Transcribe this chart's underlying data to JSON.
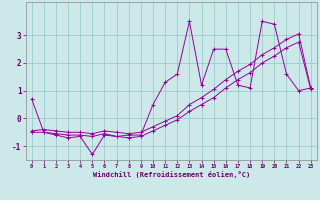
{
  "xlabel": "Windchill (Refroidissement éolien,°C)",
  "background_color": "#cce8e8",
  "grid_color": "#99cccc",
  "line_color": "#990099",
  "x_hours": [
    0,
    1,
    2,
    3,
    4,
    5,
    6,
    7,
    8,
    9,
    10,
    11,
    12,
    13,
    14,
    15,
    16,
    17,
    18,
    19,
    20,
    21,
    22,
    23
  ],
  "line1": [
    0.7,
    -0.5,
    -0.6,
    -0.7,
    -0.65,
    -1.3,
    -0.6,
    -0.65,
    -0.6,
    -0.6,
    0.5,
    1.3,
    1.6,
    3.5,
    1.2,
    2.5,
    2.5,
    1.2,
    1.1,
    3.5,
    3.4,
    1.6,
    1.0,
    1.1
  ],
  "line2": [
    -0.5,
    -0.5,
    -0.55,
    -0.6,
    -0.6,
    -0.65,
    -0.55,
    -0.65,
    -0.7,
    -0.65,
    -0.45,
    -0.25,
    -0.05,
    0.25,
    0.5,
    0.75,
    1.1,
    1.4,
    1.65,
    2.0,
    2.25,
    2.55,
    2.75,
    1.05
  ],
  "line3": [
    -0.45,
    -0.4,
    -0.45,
    -0.5,
    -0.5,
    -0.55,
    -0.45,
    -0.5,
    -0.55,
    -0.5,
    -0.3,
    -0.1,
    0.1,
    0.5,
    0.75,
    1.05,
    1.4,
    1.7,
    1.95,
    2.3,
    2.55,
    2.85,
    3.05,
    1.1
  ],
  "ylim": [
    -1.5,
    4.2
  ],
  "yticks": [
    -1,
    0,
    1,
    2,
    3
  ],
  "xlim": [
    -0.5,
    23.5
  ],
  "tick_color": "#660066",
  "label_fontsize": 5.0,
  "ytick_fontsize": 5.5
}
